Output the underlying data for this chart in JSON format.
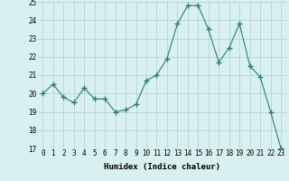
{
  "x": [
    0,
    1,
    2,
    3,
    4,
    5,
    6,
    7,
    8,
    9,
    10,
    11,
    12,
    13,
    14,
    15,
    16,
    17,
    18,
    19,
    20,
    21,
    22,
    23
  ],
  "y": [
    20.0,
    20.5,
    19.8,
    19.5,
    20.3,
    19.7,
    19.7,
    19.0,
    19.1,
    19.4,
    20.7,
    21.0,
    21.9,
    23.8,
    24.8,
    24.8,
    23.5,
    21.7,
    22.5,
    23.8,
    21.5,
    20.9,
    19.0,
    17.0
  ],
  "line_color": "#2e7d6e",
  "marker": "+",
  "marker_size": 4,
  "bg_color": "#d8f0f0",
  "grid_color": "#b0cece",
  "xlabel": "Humidex (Indice chaleur)",
  "ylim": [
    17,
    25
  ],
  "xlim": [
    -0.5,
    23.5
  ],
  "yticks": [
    17,
    18,
    19,
    20,
    21,
    22,
    23,
    24,
    25
  ],
  "xticks": [
    0,
    1,
    2,
    3,
    4,
    5,
    6,
    7,
    8,
    9,
    10,
    11,
    12,
    13,
    14,
    15,
    16,
    17,
    18,
    19,
    20,
    21,
    22,
    23
  ],
  "xlabel_fontsize": 6.5,
  "tick_fontsize": 5.5
}
